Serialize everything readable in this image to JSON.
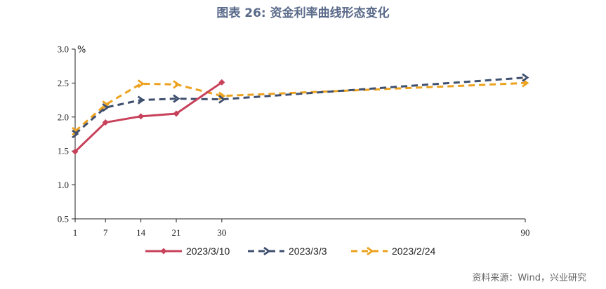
{
  "title": "图表 26: 资金利率曲线形态变化",
  "source": "资料来源：Wind，兴业研究",
  "chart_data": {
    "type": "line",
    "title": "图表 26: 资金利率曲线形态变化",
    "ylabel": "%",
    "xlabel": "",
    "x": [
      1,
      7,
      14,
      21,
      30,
      90
    ],
    "xticks": [
      "1",
      "7",
      "14",
      "21",
      "30",
      "90"
    ],
    "ylim": [
      0.5,
      3.0
    ],
    "yticks": [
      "0.5",
      "1.0",
      "1.5",
      "2.0",
      "2.5",
      "3.0"
    ],
    "ytick_values": [
      0.5,
      1.0,
      1.5,
      2.0,
      2.5,
      3.0
    ],
    "grid": false,
    "legend_position": "bottom",
    "series": [
      {
        "name": "2023/3/10",
        "color": "#c8415a",
        "dash": "solid",
        "marker": "diamond",
        "x": [
          1,
          7,
          14,
          21,
          30
        ],
        "values": [
          1.49,
          1.92,
          2.01,
          2.05,
          2.51
        ]
      },
      {
        "name": "2023/3/3",
        "color": "#3f4f6e",
        "dash": "dashed",
        "marker": "arrow",
        "x": [
          1,
          7,
          14,
          21,
          30,
          90
        ],
        "values": [
          1.75,
          2.14,
          2.25,
          2.27,
          2.26,
          2.58
        ]
      },
      {
        "name": "2023/2/24",
        "color": "#eca21e",
        "dash": "dashed",
        "marker": "arrow",
        "x": [
          1,
          7,
          14,
          21,
          30,
          90
        ],
        "values": [
          1.79,
          2.18,
          2.49,
          2.48,
          2.31,
          2.5
        ]
      }
    ]
  }
}
